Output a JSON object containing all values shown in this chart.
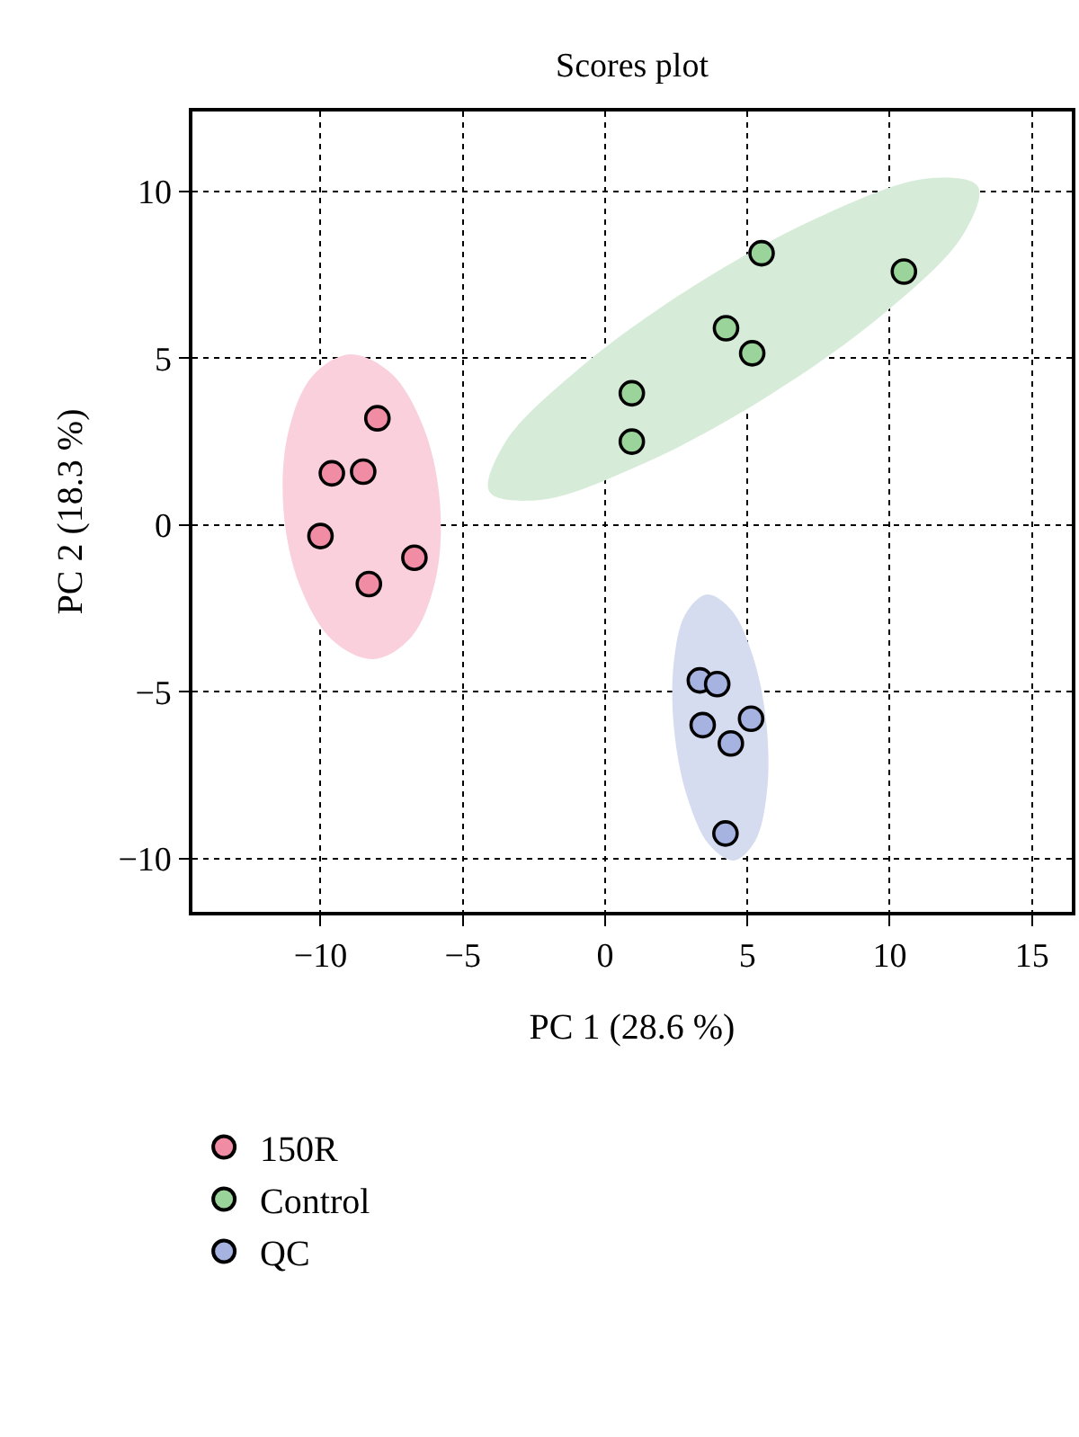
{
  "chart_data": {
    "type": "scatter",
    "title": "Scores plot",
    "xlabel": "PC 1 (28.6 %)",
    "ylabel": "PC 2 (18.3 %)",
    "xlim": [
      -14.5,
      16.4
    ],
    "ylim": [
      -11.6,
      12.4
    ],
    "xticks": [
      -10,
      -5,
      0,
      5,
      10,
      15
    ],
    "yticks": [
      -10,
      -5,
      0,
      5,
      10
    ],
    "grid": true,
    "line_style": "dotted",
    "legend": "bottom left",
    "series": [
      {
        "type": "area",
        "color": "#f9d0dc",
        "x": [
          -8.97,
          -7.53,
          -6.38,
          -5.8,
          -5.96,
          -6.81,
          -8.13,
          -9.57,
          -10.72,
          -11.3,
          -11.14,
          -10.29,
          -8.97
        ],
        "values": [
          5.12,
          4.56,
          2.93,
          0.65,
          -1.65,
          -3.36,
          -4.02,
          -3.46,
          -1.83,
          0.45,
          2.75,
          4.46,
          5.12
        ]
      },
      {
        "type": "area",
        "color": "#d6ecd8",
        "x": [
          13.1,
          12.57,
          9.88,
          5.75,
          1.3,
          -2.29,
          -4.06,
          -3.53,
          -0.84,
          3.29,
          7.74,
          11.33,
          13.1
        ],
        "values": [
          10.15,
          8.69,
          6.4,
          3.88,
          1.82,
          0.75,
          0.99,
          2.45,
          4.74,
          7.26,
          9.32,
          10.39,
          10.15
        ]
      },
      {
        "type": "area",
        "color": "#d6dcf0",
        "x": [
          3.58,
          4.45,
          5.21,
          5.67,
          5.69,
          5.27,
          4.52,
          3.65,
          2.89,
          2.43,
          2.41,
          2.83,
          3.58
        ],
        "values": [
          -2.08,
          -2.56,
          -3.98,
          -5.97,
          -7.98,
          -9.48,
          -10.06,
          -9.58,
          -8.16,
          -6.17,
          -4.16,
          -2.66,
          -2.08
        ]
      },
      {
        "name": "150R",
        "marker": "circle",
        "color": "#f08ca4",
        "x": [
          -8.0,
          -9.6,
          -8.5,
          -10.0,
          -6.7,
          -8.3
        ],
        "values": [
          3.2,
          1.55,
          1.6,
          -0.33,
          -0.98,
          -1.77
        ]
      },
      {
        "name": "Control",
        "marker": "circle",
        "color": "#9ad49a",
        "x": [
          5.5,
          10.5,
          4.25,
          5.17,
          0.94,
          0.94
        ],
        "values": [
          8.15,
          7.6,
          5.9,
          5.15,
          3.95,
          2.5
        ]
      },
      {
        "name": "QC",
        "marker": "circle",
        "color": "#a6b2e0",
        "x": [
          3.33,
          3.94,
          3.43,
          5.13,
          4.42,
          4.23
        ],
        "values": [
          -4.66,
          -4.77,
          -6.0,
          -5.81,
          -6.55,
          -9.25
        ]
      }
    ]
  }
}
